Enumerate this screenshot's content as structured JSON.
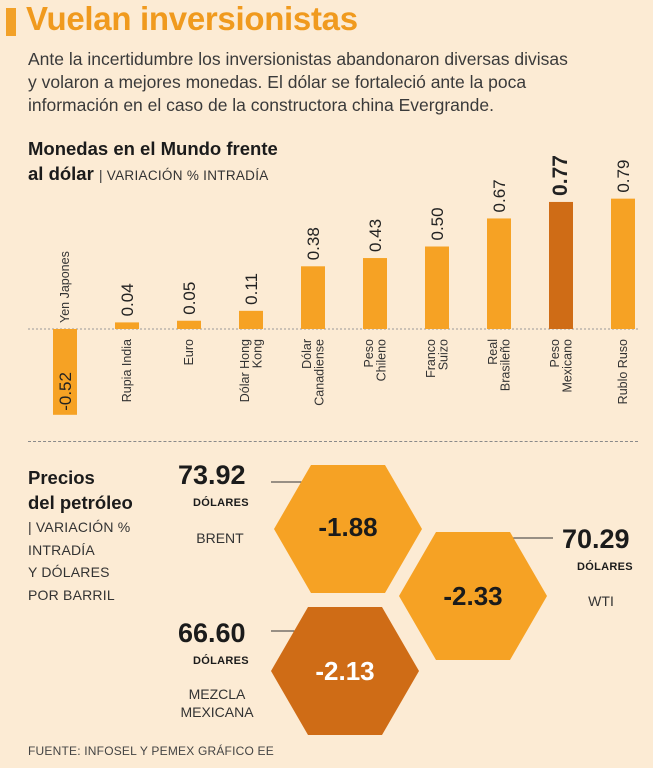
{
  "header": {
    "title": "Vuelan inversionistas",
    "intro_lines": [
      "Ante la incertidumbre los inversionistas abandonaron diversas divisas",
      "y volaron a mejores monedas. El dólar se fortaleció ante la poca",
      "información en el caso de la constructora china Evergrande."
    ]
  },
  "currency_chart": {
    "title_line1": "Monedas en el Mundo frente",
    "title_line2": "al dólar",
    "subtitle": "| VARIACIÓN % INTRADÍA"
  },
  "colors": {
    "background": "#fcebd4",
    "bar": "#f6a224",
    "highlight": "#cf6c16",
    "title": "#f09a1e"
  },
  "chart_data": {
    "type": "bar",
    "title": "Monedas en el Mundo frente al dólar",
    "ylabel": "VARIACIÓN % INTRADÍA",
    "highlight_index": 8,
    "ylim": [
      -0.6,
      0.85
    ],
    "categories": [
      [
        "Yen Japones"
      ],
      [
        "Rupia India"
      ],
      [
        "Euro"
      ],
      [
        "Dólar Hong",
        "Kong"
      ],
      [
        "Dólar",
        "Canadiense"
      ],
      [
        "Peso",
        "Chileno"
      ],
      [
        "Franco",
        "Suizo"
      ],
      [
        "Real",
        "Brasileño"
      ],
      [
        "Peso",
        "Mexicano"
      ],
      [
        "Rublo Ruso"
      ]
    ],
    "values": [
      -0.52,
      0.04,
      0.05,
      0.11,
      0.38,
      0.43,
      0.5,
      0.67,
      0.77,
      0.79
    ],
    "value_labels": [
      "-0.52",
      "0.04",
      "0.05",
      "0.11",
      "0.38",
      "0.43",
      "0.50",
      "0.67",
      "0.77",
      "0.79"
    ]
  },
  "oil": {
    "title_line1": "Precios",
    "title_line2": "del petróleo",
    "subtitle_lines": [
      "| VARIACIÓN %",
      "INTRADÍA",
      "Y DÓLARES",
      "POR BARRIL"
    ],
    "unit": "DÓLARES",
    "brent": {
      "price": "73.92",
      "name_lines": [
        "BRENT"
      ],
      "change": "-1.88"
    },
    "wti": {
      "price": "70.29",
      "name_lines": [
        "WTI"
      ],
      "change": "-2.33"
    },
    "mezcla": {
      "price": "66.60",
      "name_lines": [
        "MEZCLA",
        "MEXICANA"
      ],
      "change": "-2.13"
    }
  },
  "source": "FUENTE: INFOSEL Y PEMEX GRÁFICO EE"
}
